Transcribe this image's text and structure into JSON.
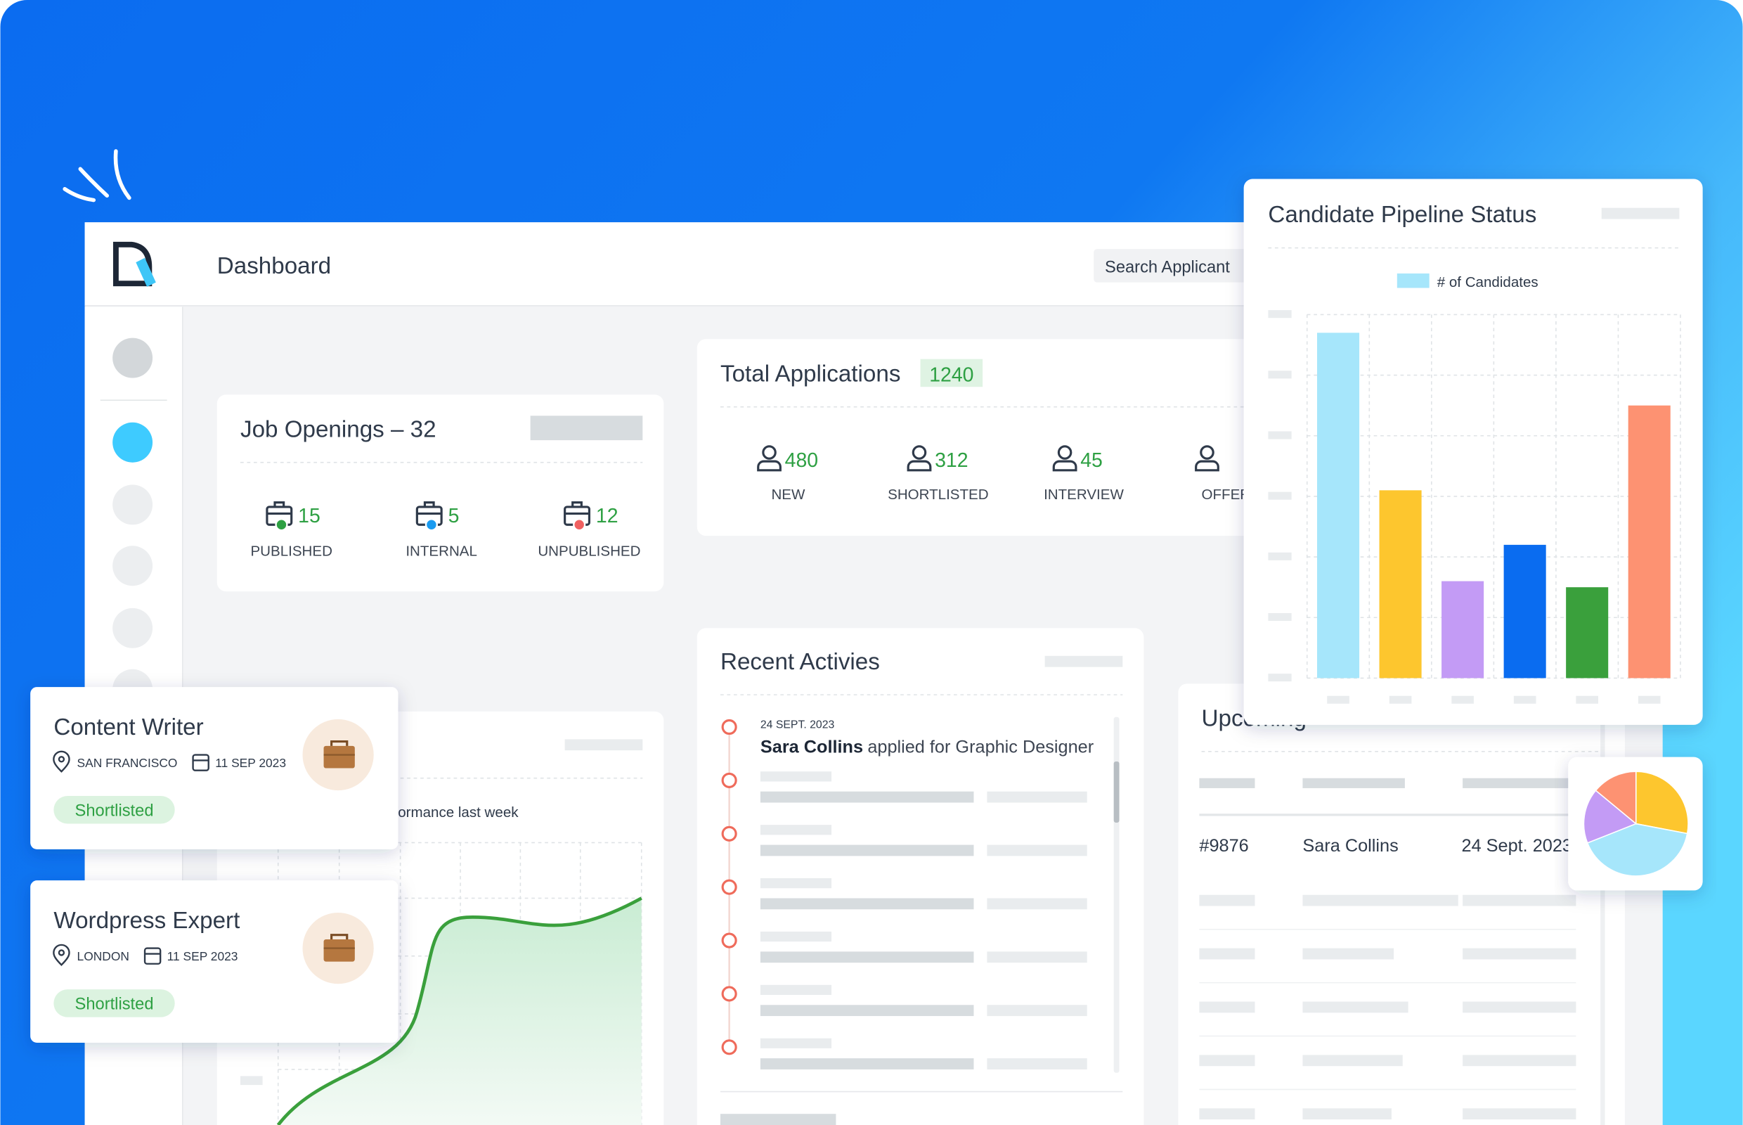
{
  "header": {
    "title": "Dashboard",
    "search_placeholder": "Search Applicant"
  },
  "job_openings": {
    "title": "Job Openings – 32",
    "stats": [
      {
        "value": 15,
        "label": "PUBLISHED"
      },
      {
        "value": 5,
        "label": "INTERNAL"
      },
      {
        "value": 12,
        "label": "UNPUBLISHED"
      }
    ]
  },
  "total_applications": {
    "title": "Total Applications",
    "total": 1240,
    "stats": [
      {
        "value": 480,
        "label": "NEW"
      },
      {
        "value": 312,
        "label": "SHORTLISTED"
      },
      {
        "value": 45,
        "label": "INTERVIEW"
      },
      {
        "label": "OFFER"
      }
    ]
  },
  "performance": {
    "subtitle": "Performance last week"
  },
  "recent_activities": {
    "title": "Recent Activies",
    "items": [
      {
        "date": "24 SEPT. 2023",
        "name": "Sara Collins",
        "action": "applied for Graphic Designer"
      }
    ]
  },
  "upcoming": {
    "title": "Upcoming",
    "rows": [
      [
        "#9876",
        "Sara Collins",
        "24 Sept. 2023"
      ]
    ]
  },
  "job_cards": [
    {
      "title": "Content Writer",
      "location": "SAN FRANCISCO",
      "date": "11 SEP 2023",
      "status": "Shortlisted"
    },
    {
      "title": "Wordpress Expert",
      "location": "LONDON",
      "date": "11 SEP 2023",
      "status": "Shortlisted"
    }
  ],
  "chart_data": [
    {
      "type": "bar",
      "title": "Candidate Pipeline Status",
      "categories": [
        null,
        null,
        null,
        null,
        null,
        null
      ],
      "series": [
        {
          "name": "# of Candidates",
          "color": "#a6e6fb",
          "values": [
            5.7,
            3.1,
            1.6,
            2.2,
            1.5,
            4.5
          ]
        }
      ],
      "colors": [
        "#a6e6fb",
        "#fdc62e",
        "#c39bf5",
        "#0a6cf0",
        "#3aa03c",
        "#fd9272"
      ],
      "ylim": [
        0,
        6
      ],
      "yticks": [
        0,
        1,
        2,
        3,
        4,
        5,
        6
      ],
      "grid": true
    },
    {
      "type": "pie",
      "categories": [
        null,
        null,
        null,
        null
      ],
      "values": [
        28,
        41,
        17,
        14
      ],
      "colors": [
        "#fdc62e",
        "#a6e6fb",
        "#c39bf5",
        "#fd9272"
      ]
    }
  ]
}
